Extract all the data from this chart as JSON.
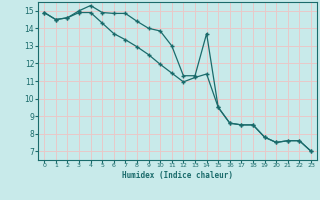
{
  "xlabel": "Humidex (Indice chaleur)",
  "background_color": "#c8eaea",
  "grid_color": "#e8c8c8",
  "line_color": "#1a6b6b",
  "xlim": [
    -0.5,
    23.5
  ],
  "ylim": [
    6.5,
    15.5
  ],
  "xticks": [
    0,
    1,
    2,
    3,
    4,
    5,
    6,
    7,
    8,
    9,
    10,
    11,
    12,
    13,
    14,
    15,
    16,
    17,
    18,
    19,
    20,
    21,
    22,
    23
  ],
  "yticks": [
    7,
    8,
    9,
    10,
    11,
    12,
    13,
    14,
    15
  ],
  "line1_x": [
    0,
    1,
    2,
    3,
    4,
    5,
    6,
    7,
    8,
    9,
    10,
    11,
    12,
    13,
    14,
    15,
    16,
    17,
    18,
    19,
    20,
    21,
    22,
    23
  ],
  "line1_y": [
    14.9,
    14.5,
    14.6,
    15.0,
    15.3,
    14.9,
    14.85,
    14.85,
    14.4,
    14.0,
    13.85,
    13.0,
    11.3,
    11.3,
    13.7,
    9.5,
    8.6,
    8.5,
    8.5,
    7.8,
    7.5,
    7.6,
    7.6,
    7.0
  ],
  "line2_x": [
    0,
    1,
    2,
    3,
    4,
    5,
    6,
    7,
    8,
    9,
    10,
    11,
    12,
    13,
    14,
    15,
    16,
    17,
    18,
    19,
    20,
    21,
    22,
    23
  ],
  "line2_y": [
    14.9,
    14.5,
    14.6,
    14.9,
    14.9,
    14.3,
    13.7,
    13.35,
    12.95,
    12.5,
    11.95,
    11.45,
    10.95,
    11.2,
    11.4,
    9.5,
    8.6,
    8.5,
    8.5,
    7.8,
    7.5,
    7.6,
    7.6,
    7.0
  ]
}
